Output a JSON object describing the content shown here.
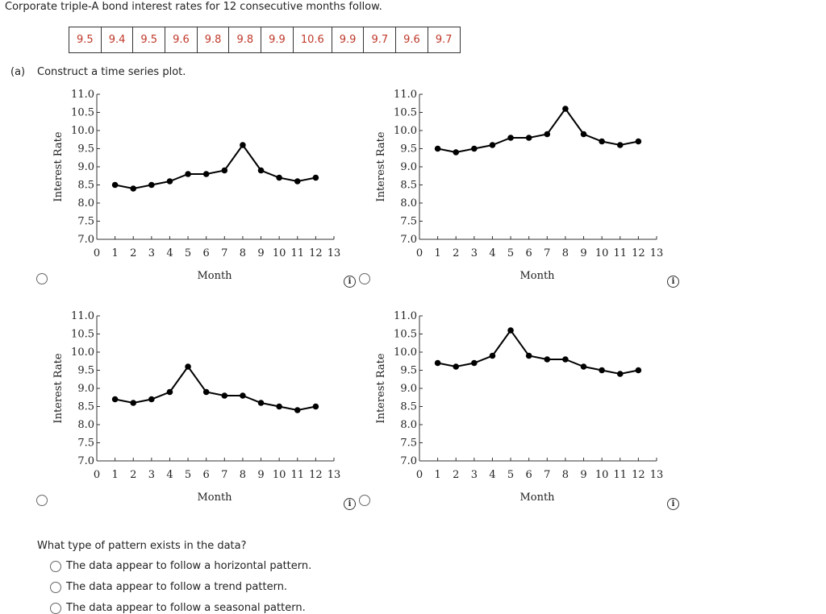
{
  "header": {
    "title": "Corporate triple-A bond interest rates for 12 consecutive months follow."
  },
  "table": {
    "rows": [
      [
        9.5,
        9.4,
        9.5,
        9.6,
        9.8,
        9.8,
        9.9,
        10.6,
        9.9,
        9.7,
        9.6,
        9.7
      ]
    ]
  },
  "part_a": {
    "label": "(a)",
    "text": "Construct a time series plot."
  },
  "chart_data": [
    {
      "type": "line",
      "xlabel": "Month",
      "ylabel": "Interest Rate",
      "x": [
        1,
        2,
        3,
        4,
        5,
        6,
        7,
        8,
        9,
        10,
        11,
        12
      ],
      "values": [
        8.5,
        8.4,
        8.5,
        8.6,
        8.8,
        8.8,
        8.9,
        9.6,
        8.9,
        8.7,
        8.6,
        8.7
      ],
      "color": "#000000",
      "xlim": [
        0,
        13
      ],
      "ylim": [
        7,
        11
      ],
      "xticks": [
        0,
        1,
        2,
        3,
        4,
        5,
        6,
        7,
        8,
        9,
        10,
        11,
        12,
        13
      ],
      "yticks": [
        {
          "value": 7,
          "label": "7.0"
        },
        7.5,
        {
          "value": 8,
          "label": "8.0"
        },
        8.5,
        {
          "value": 9,
          "label": "9.0"
        },
        9.5,
        {
          "value": 10,
          "label": "10.0"
        },
        10.5,
        {
          "value": 11,
          "label": "11.0"
        }
      ]
    },
    {
      "type": "line",
      "xlabel": "Month",
      "ylabel": "Interest Rate",
      "x": [
        1,
        2,
        3,
        4,
        5,
        6,
        7,
        8,
        9,
        10,
        11,
        12
      ],
      "values": [
        9.5,
        9.4,
        9.5,
        9.6,
        9.8,
        9.8,
        9.9,
        10.6,
        9.9,
        9.7,
        9.6,
        9.7
      ],
      "color": "#000000",
      "xlim": [
        0,
        13
      ],
      "ylim": [
        7,
        11
      ],
      "xticks": [
        0,
        1,
        2,
        3,
        4,
        5,
        6,
        7,
        8,
        9,
        10,
        11,
        12,
        13
      ],
      "yticks": [
        {
          "value": 7,
          "label": "7.0"
        },
        7.5,
        {
          "value": 8,
          "label": "8.0"
        },
        8.5,
        {
          "value": 9,
          "label": "9.0"
        },
        9.5,
        {
          "value": 10,
          "label": "10.0"
        },
        10.5,
        {
          "value": 11,
          "label": "11.0"
        }
      ]
    },
    {
      "type": "line",
      "xlabel": "Month",
      "ylabel": "Interest Rate",
      "x": [
        1,
        2,
        3,
        4,
        5,
        6,
        7,
        8,
        9,
        10,
        11,
        12
      ],
      "values": [
        8.7,
        8.6,
        8.7,
        8.9,
        9.6,
        8.9,
        8.8,
        8.8,
        8.6,
        8.5,
        8.4,
        8.5
      ],
      "color": "#000000",
      "xlim": [
        0,
        13
      ],
      "ylim": [
        7,
        11
      ],
      "xticks": [
        0,
        1,
        2,
        3,
        4,
        5,
        6,
        7,
        8,
        9,
        10,
        11,
        12,
        13
      ],
      "yticks": [
        {
          "value": 7,
          "label": "7.0"
        },
        7.5,
        {
          "value": 8,
          "label": "8.0"
        },
        8.5,
        {
          "value": 9,
          "label": "9.0"
        },
        9.5,
        {
          "value": 10,
          "label": "10.0"
        },
        10.5,
        {
          "value": 11,
          "label": "11.0"
        }
      ]
    },
    {
      "type": "line",
      "xlabel": "Month",
      "ylabel": "Interest Rate",
      "x": [
        1,
        2,
        3,
        4,
        5,
        6,
        7,
        8,
        9,
        10,
        11,
        12
      ],
      "values": [
        9.7,
        9.6,
        9.7,
        9.9,
        10.6,
        9.9,
        9.8,
        9.8,
        9.6,
        9.5,
        9.4,
        9.5
      ],
      "color": "#000000",
      "xlim": [
        0,
        13
      ],
      "ylim": [
        7,
        11
      ],
      "xticks": [
        0,
        1,
        2,
        3,
        4,
        5,
        6,
        7,
        8,
        9,
        10,
        11,
        12,
        13
      ],
      "yticks": [
        {
          "value": 7,
          "label": "7.0"
        },
        7.5,
        {
          "value": 8,
          "label": "8.0"
        },
        8.5,
        {
          "value": 9,
          "label": "9.0"
        },
        9.5,
        {
          "value": 10,
          "label": "10.0"
        },
        10.5,
        {
          "value": 11,
          "label": "11.0"
        }
      ]
    }
  ],
  "question": {
    "text": "What type of pattern exists in the data?",
    "options": [
      "The data appear to follow a horizontal pattern.",
      "The data appear to follow a trend pattern.",
      "The data appear to follow a seasonal pattern."
    ]
  }
}
